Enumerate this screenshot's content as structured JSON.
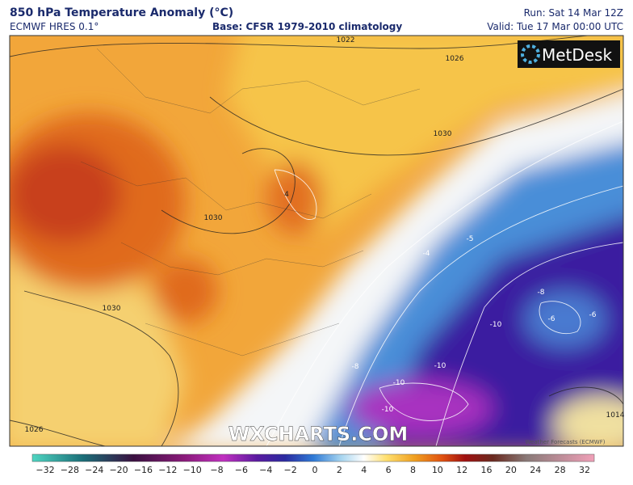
{
  "header": {
    "title": "850 hPa Temperature Anomaly (°C)",
    "model": "ECMWF HRES 0.1°",
    "base": "Base: CFSR 1979-2010 climatology",
    "run": "Run: Sat 14 Mar 12Z",
    "valid": "Valid: Tue 17 Mar 00:00 UTC"
  },
  "map": {
    "logo": "MetDesk",
    "watermark": "WXCHARTS.COM",
    "credit": "Weather Forecasts (ECMWF)",
    "contour_labels": [
      "1022",
      "1026",
      "1030",
      "1030",
      "1030",
      "1026",
      "-4",
      "-5",
      "-6",
      "-6",
      "-8",
      "-10",
      "-10",
      "-10",
      "-10",
      "4",
      "-8",
      "1014"
    ]
  },
  "colorbar": {
    "labels": [
      "−32",
      "−28",
      "−24",
      "−20",
      "−16",
      "−12",
      "−10",
      "−8",
      "−6",
      "−4",
      "−2",
      "0",
      "2",
      "4",
      "6",
      "8",
      "10",
      "12",
      "16",
      "20",
      "24",
      "28",
      "32"
    ]
  }
}
